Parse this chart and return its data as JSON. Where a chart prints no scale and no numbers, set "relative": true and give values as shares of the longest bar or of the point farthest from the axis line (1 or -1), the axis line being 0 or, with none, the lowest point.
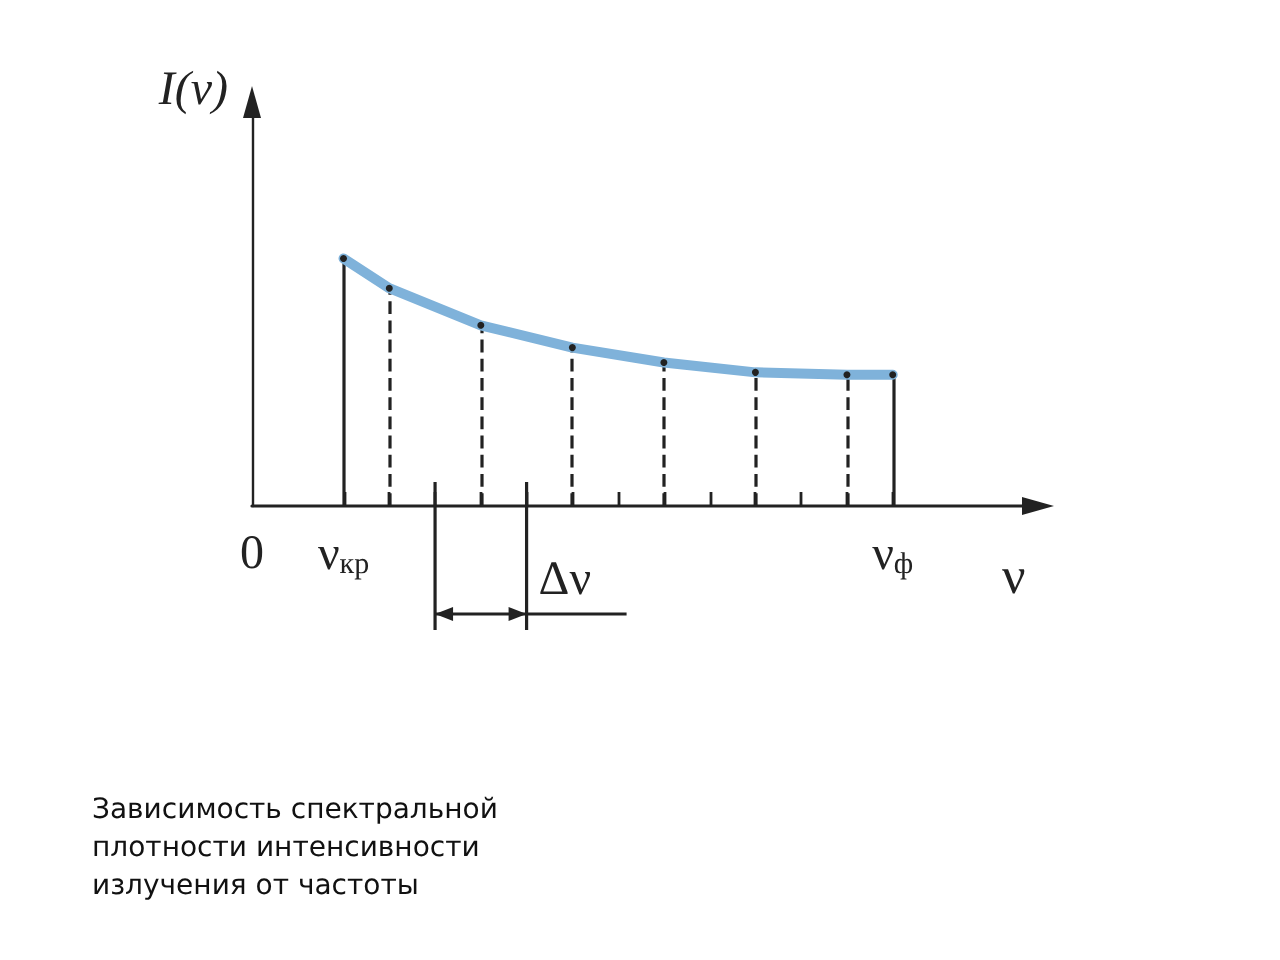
{
  "chart_data": {
    "type": "line",
    "relative": true,
    "xlabel": "ν",
    "ylabel": "I(ν)",
    "categories": [
      "0",
      null,
      "ν$_{кр}$",
      null,
      null,
      null,
      null,
      null,
      null,
      null,
      null,
      null,
      null,
      null,
      "ν$_{ф}$",
      null,
      null,
      null
    ],
    "series": [
      {
        "color": "#7fb2da",
        "line_style": "solid",
        "marker": "none",
        "values": [
          null,
          null,
          1,
          0.88,
          null,
          0.73,
          null,
          0.64,
          null,
          0.58,
          null,
          0.54,
          null,
          0.53,
          0.53,
          null,
          null,
          null
        ]
      },
      {
        "type": "lollipop",
        "color": "#222222",
        "line_style": "dashed",
        "marker": "circle",
        "values": [
          null,
          null,
          1,
          0.88,
          null,
          0.73,
          null,
          0.64,
          null,
          0.58,
          null,
          0.54,
          null,
          0.53,
          0.53,
          null,
          null,
          null
        ]
      }
    ],
    "annotations": [
      "Δν",
      "Зависимость спектральной плотности интенсивности излучения от частоты"
    ]
  }
}
